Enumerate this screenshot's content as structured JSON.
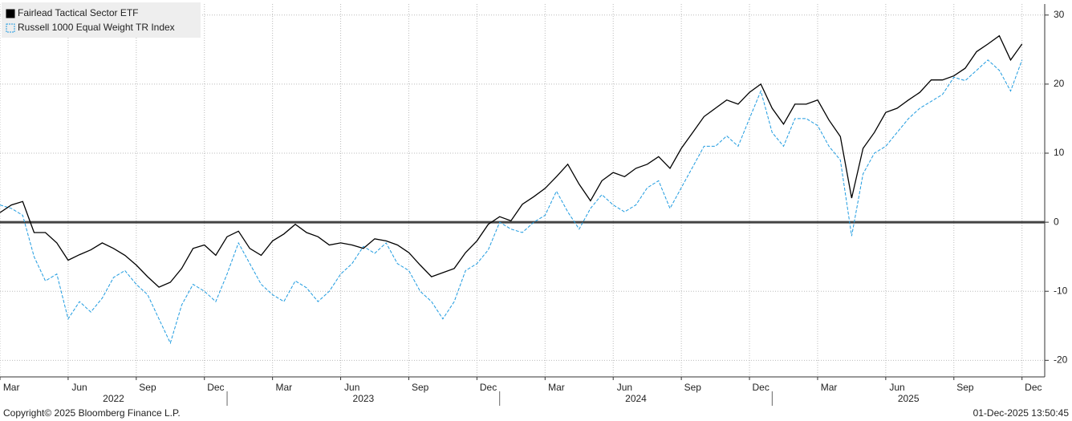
{
  "chart_data": {
    "type": "line",
    "legend_position": "top-left",
    "grid": true,
    "reference_line": 0,
    "x": [
      0,
      0.5,
      1,
      1.5,
      2,
      2.5,
      3,
      3.5,
      4,
      4.5,
      5,
      5.5,
      6,
      6.5,
      7,
      7.5,
      8,
      8.5,
      9,
      9.5,
      10,
      10.5,
      11,
      11.5,
      12,
      12.5,
      13,
      13.5,
      14,
      14.5,
      15,
      15.5,
      16,
      16.5,
      17,
      17.5,
      18,
      18.5,
      19,
      19.5,
      20,
      20.5,
      21,
      21.5,
      22,
      22.5,
      23,
      23.5,
      24,
      24.5,
      25,
      25.5,
      26,
      26.5,
      27,
      27.5,
      28,
      28.5,
      29,
      29.5,
      30,
      30.5,
      31,
      31.5,
      32,
      32.5,
      33,
      33.5,
      34,
      34.5,
      35,
      35.5,
      36,
      36.5,
      37,
      37.5,
      38,
      38.5,
      39,
      39.5,
      40,
      40.5,
      41,
      41.5,
      42,
      42.5,
      43,
      43.5,
      44,
      44.5,
      45
    ],
    "series": [
      {
        "name": "Fairlead Tactical Sector ETF",
        "color": "#000000",
        "dash": false,
        "values": [
          1.4,
          2.5,
          3,
          -1.5,
          -1.5,
          -3,
          -5.5,
          -4.7,
          -4,
          -3,
          -3.8,
          -4.8,
          -6.2,
          -7.9,
          -9.4,
          -8.7,
          -6.7,
          -3.8,
          -3.3,
          -4.8,
          -2.1,
          -1.3,
          -3.8,
          -4.8,
          -2.7,
          -1.7,
          -0.3,
          -1.5,
          -2.1,
          -3.3,
          -3,
          -3.3,
          -3.8,
          -2.4,
          -2.7,
          -3.3,
          -4.4,
          -6.2,
          -7.9,
          -7.3,
          -6.7,
          -4.4,
          -2.7,
          -0.3,
          0.8,
          0.2,
          2.6,
          3.7,
          4.9,
          6.6,
          8.4,
          5.5,
          3.1,
          6,
          7.2,
          6.6,
          7.8,
          8.4,
          9.5,
          7.8,
          10.7,
          13,
          15.3,
          16.5,
          17.7,
          17.1,
          18.8,
          20,
          16.5,
          14.2,
          17.1,
          17.1,
          17.7,
          14.8,
          12.4,
          3.5,
          10.7,
          13,
          15.9,
          16.5,
          17.7,
          18.8,
          20.6,
          20.6,
          21.2,
          22.3,
          24.7,
          25.8,
          27,
          23.5,
          25.8
        ]
      },
      {
        "name": "Russell 1000 Equal Weight TR Index",
        "color": "#1e9be0",
        "dash": true,
        "values": [
          2.5,
          2,
          1,
          -5,
          -8.5,
          -7.5,
          -14,
          -11.5,
          -13,
          -11,
          -8,
          -7,
          -9,
          -10.5,
          -14,
          -17.5,
          -12,
          -9,
          -10,
          -11.5,
          -7.5,
          -3,
          -6,
          -9,
          -10.5,
          -11.5,
          -8.5,
          -9.5,
          -11.5,
          -10,
          -7.5,
          -6,
          -3.5,
          -4.5,
          -3,
          -6,
          -7,
          -10,
          -11.5,
          -14,
          -11.5,
          -7,
          -6,
          -4,
          0,
          -1,
          -1.5,
          0,
          1,
          4.5,
          1.5,
          -1,
          2,
          4,
          2.5,
          1.5,
          2.5,
          5,
          6,
          2,
          5,
          8,
          11,
          11,
          12.5,
          11,
          15,
          19,
          13,
          11,
          15,
          15,
          14,
          11,
          9,
          -2,
          7,
          10,
          11,
          13,
          15,
          16.5,
          17.5,
          18.5,
          21,
          20.5,
          22,
          23.5,
          22,
          19,
          23.5
        ]
      }
    ],
    "xlim": [
      0,
      46
    ],
    "xticks": [
      {
        "value": 0,
        "label": "Mar"
      },
      {
        "value": 3,
        "label": "Jun"
      },
      {
        "value": 6,
        "label": "Sep"
      },
      {
        "value": 9,
        "label": "Dec"
      },
      {
        "value": 12,
        "label": "Mar"
      },
      {
        "value": 15,
        "label": "Jun"
      },
      {
        "value": 18,
        "label": "Sep"
      },
      {
        "value": 21,
        "label": "Dec"
      },
      {
        "value": 24,
        "label": "Mar"
      },
      {
        "value": 27,
        "label": "Jun"
      },
      {
        "value": 30,
        "label": "Sep"
      },
      {
        "value": 33,
        "label": "Dec"
      },
      {
        "value": 36,
        "label": "Mar"
      },
      {
        "value": 39,
        "label": "Jun"
      },
      {
        "value": 42,
        "label": "Sep"
      },
      {
        "value": 45,
        "label": "Dec"
      }
    ],
    "year_ticks": [
      {
        "value": -2,
        "label": "2022"
      },
      {
        "value": 10,
        "label": "2023"
      },
      {
        "value": 22,
        "label": "2024"
      },
      {
        "value": 34,
        "label": "2025"
      }
    ],
    "ylim": [
      -22.4,
      31.6
    ],
    "yticks": [
      -20,
      -10,
      0,
      10,
      20,
      30
    ]
  },
  "footer": {
    "copyright": "Copyright© 2025 Bloomberg Finance L.P.",
    "timestamp": "01-Dec-2025 13:50:45"
  }
}
